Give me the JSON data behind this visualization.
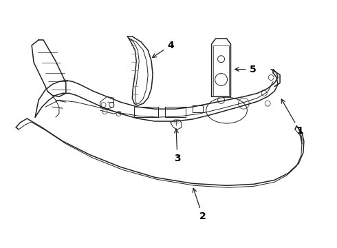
{
  "bg_color": "#ffffff",
  "line_color": "#222222",
  "lw_main": 1.1,
  "lw_inner": 0.7,
  "lw_detail": 0.5
}
